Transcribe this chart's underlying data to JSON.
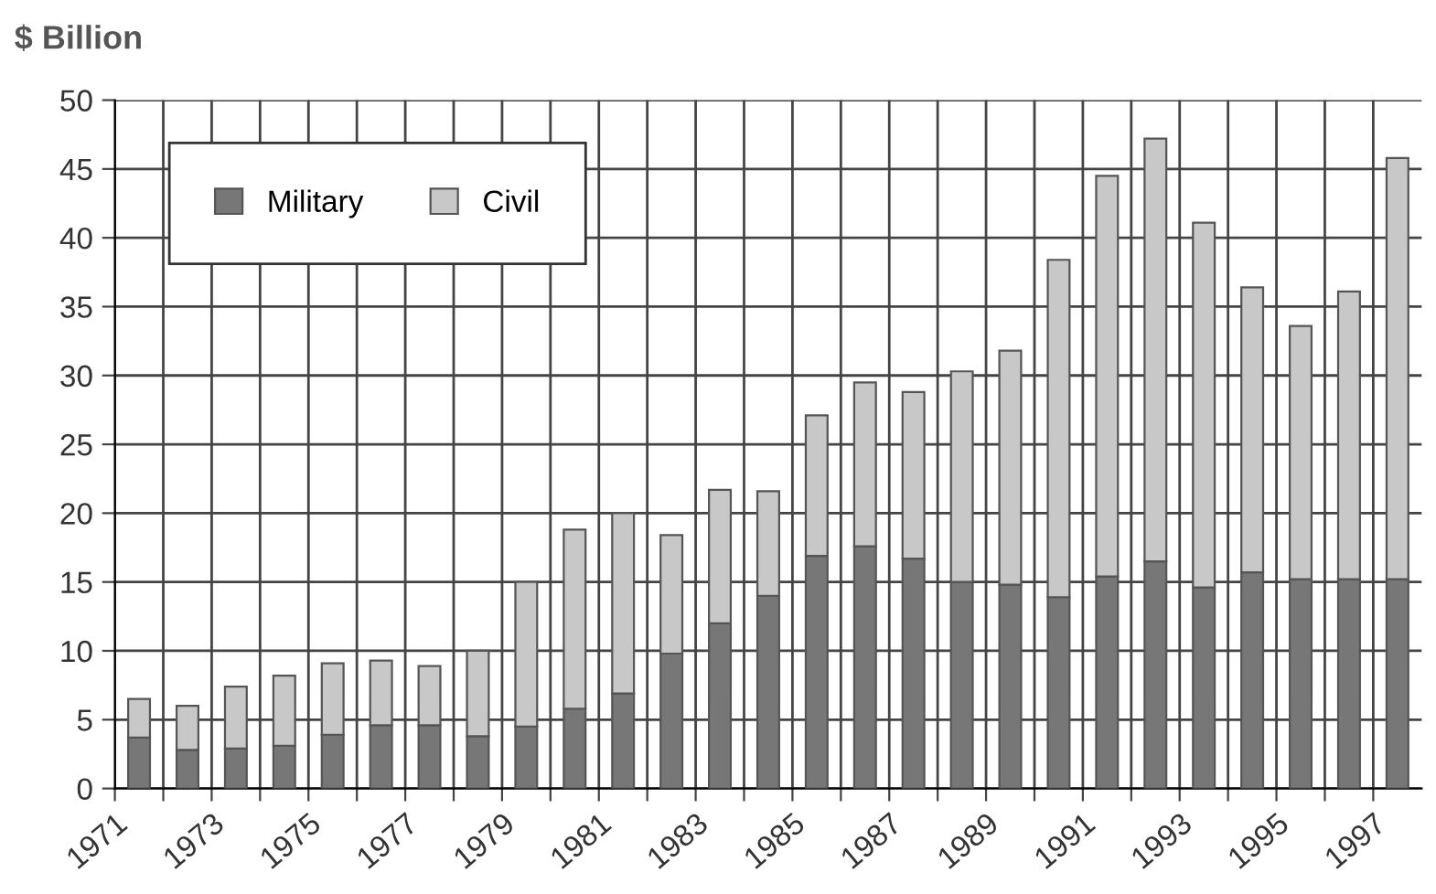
{
  "chart_data": {
    "type": "bar",
    "title": "$ Billion",
    "stacked": true,
    "categories": [
      "1971",
      null,
      "1973",
      null,
      "1975",
      null,
      "1977",
      null,
      "1979",
      null,
      "1981",
      null,
      "1983",
      null,
      "1985",
      null,
      "1987",
      null,
      "1989",
      null,
      "1991",
      null,
      "1993",
      null,
      "1995",
      null,
      "1997"
    ],
    "series": [
      {
        "name": "Military",
        "color": "#777777",
        "values": [
          3.7,
          2.8,
          2.9,
          3.1,
          3.9,
          4.6,
          4.6,
          3.8,
          4.5,
          5.8,
          6.9,
          9.8,
          12.0,
          14.0,
          16.9,
          17.6,
          16.7,
          15.0,
          14.8,
          13.9,
          15.4,
          16.5,
          14.6,
          15.7,
          15.2,
          15.2,
          15.2
        ]
      },
      {
        "name": "Civil",
        "color": "#c8c8c8",
        "values": [
          2.8,
          3.2,
          4.5,
          5.1,
          5.2,
          4.7,
          4.3,
          6.2,
          10.5,
          13.0,
          13.1,
          8.6,
          9.7,
          7.6,
          10.2,
          11.9,
          12.1,
          15.3,
          17.0,
          24.5,
          29.1,
          30.7,
          26.5,
          20.7,
          18.4,
          20.9,
          30.6
        ]
      }
    ],
    "ylim": [
      0,
      50
    ],
    "yticks": [
      0,
      5,
      10,
      15,
      20,
      25,
      30,
      35,
      40,
      45,
      50
    ],
    "grid": true,
    "legend": "top left"
  }
}
